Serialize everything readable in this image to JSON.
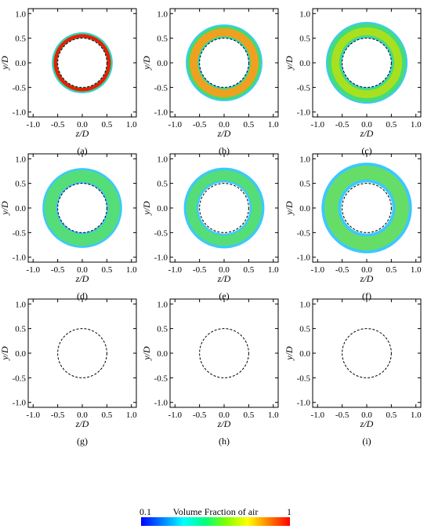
{
  "chart_data": {
    "type": "heatmap",
    "xlabel": "z/D",
    "ylabel": "y/D",
    "xlim": [
      -1.1,
      1.1
    ],
    "ylim": [
      -1.1,
      1.1
    ],
    "xticks": [
      "-1.0",
      "-0.5",
      "0.0",
      "0.5",
      "1.0"
    ],
    "yticks": [
      "-1.0",
      "-0.5",
      "0.0",
      "0.5",
      "1.0"
    ],
    "cylinder_radius": 0.5,
    "grid": false,
    "colorbar": {
      "label": "Volume Fraction of air",
      "min_label": "0.1",
      "max_label": "1",
      "placement": "bottom",
      "colors": [
        "#0000ff",
        "#0080ff",
        "#00ffff",
        "#00ff80",
        "#80ff00",
        "#ffff00",
        "#ff8000",
        "#ff0000"
      ]
    },
    "panels": [
      {
        "caption": "(a)",
        "rings": [
          {
            "inner": 0.5,
            "outer": 0.62,
            "color": "#3cc8ff"
          },
          {
            "inner": 0.5,
            "outer": 0.6,
            "color": "#33dd55"
          },
          {
            "inner": 0.51,
            "outer": 0.58,
            "color": "#e81c10"
          }
        ]
      },
      {
        "caption": "(b)",
        "rings": [
          {
            "inner": 0.5,
            "outer": 0.78,
            "color": "#3cc8ff"
          },
          {
            "inner": 0.52,
            "outer": 0.75,
            "color": "#44dd66"
          },
          {
            "inner": 0.54,
            "outer": 0.7,
            "color": "#f0a020"
          }
        ]
      },
      {
        "caption": "(c)",
        "rings": [
          {
            "inner": 0.5,
            "outer": 0.83,
            "color": "#3cc8ff"
          },
          {
            "inner": 0.52,
            "outer": 0.8,
            "color": "#44dd77"
          },
          {
            "inner": 0.56,
            "outer": 0.72,
            "color": "#a8e020"
          }
        ]
      },
      {
        "caption": "(d)",
        "rings": [
          {
            "inner": 0.5,
            "outer": 0.81,
            "color": "#3cc8ff"
          },
          {
            "inner": 0.53,
            "outer": 0.77,
            "color": "#55dd77"
          }
        ]
      },
      {
        "caption": "(e)",
        "rings": [
          {
            "inner": 0.52,
            "outer": 0.82,
            "color": "#3cc8ff"
          },
          {
            "inner": 0.56,
            "outer": 0.77,
            "color": "#55dd77"
          }
        ]
      },
      {
        "caption": "(f)",
        "rings": [
          {
            "inner": 0.52,
            "outer": 0.92,
            "color": "#3cc8ff"
          },
          {
            "inner": 0.58,
            "outer": 0.86,
            "color": "#66dd66"
          }
        ]
      },
      {
        "caption": "(g)",
        "rings": []
      },
      {
        "caption": "(h)",
        "rings": []
      },
      {
        "caption": "(i)",
        "rings": []
      }
    ]
  }
}
